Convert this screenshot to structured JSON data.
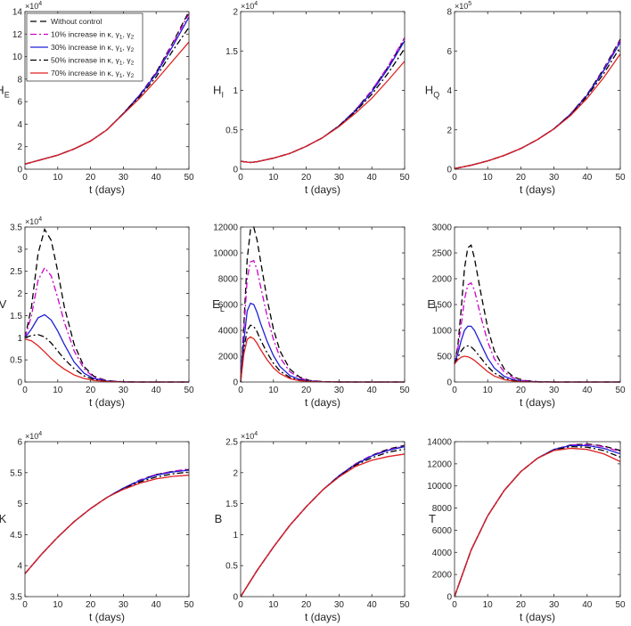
{
  "chart_data": [
    {
      "type": "line",
      "id": "HE",
      "ylabel": "H",
      "ylabel_sub": "E",
      "exponent": "×10",
      "exponent_power": "4",
      "xlabel": "t (days)",
      "xlim": [
        0,
        50
      ],
      "ylim": [
        0,
        14
      ],
      "xticks": [
        0,
        10,
        20,
        30,
        40,
        50
      ],
      "yticks": [
        0,
        2,
        4,
        6,
        8,
        10,
        12,
        14
      ],
      "x": [
        0,
        5,
        10,
        15,
        20,
        25,
        30,
        35,
        40,
        45,
        50
      ],
      "series": [
        {
          "values": [
            0.45,
            0.85,
            1.25,
            1.8,
            2.5,
            3.5,
            4.95,
            6.6,
            8.6,
            11.2,
            14.0
          ]
        },
        {
          "values": [
            0.45,
            0.85,
            1.25,
            1.8,
            2.5,
            3.5,
            4.95,
            6.6,
            8.55,
            11.1,
            13.8
          ]
        },
        {
          "values": [
            0.45,
            0.85,
            1.25,
            1.8,
            2.5,
            3.5,
            4.95,
            6.55,
            8.45,
            10.9,
            13.5
          ]
        },
        {
          "values": [
            0.45,
            0.85,
            1.25,
            1.8,
            2.5,
            3.5,
            4.95,
            6.45,
            8.2,
            10.5,
            12.6
          ]
        },
        {
          "values": [
            0.45,
            0.85,
            1.25,
            1.8,
            2.5,
            3.5,
            4.9,
            6.3,
            7.9,
            9.6,
            11.3
          ]
        }
      ],
      "legend": {
        "placement": "top-left",
        "entries": [
          {
            "text": "Without control"
          },
          {
            "text": "10% increase in κ, γ",
            "subs": [
              "1",
              "2"
            ]
          },
          {
            "text": "30% increase in κ, γ",
            "subs": [
              "1",
              "2"
            ]
          },
          {
            "text": "50% increase in κ, γ",
            "subs": [
              "1",
              "2"
            ]
          },
          {
            "text": "70% increase in κ, γ",
            "subs": [
              "1",
              "2"
            ]
          }
        ]
      }
    },
    {
      "type": "line",
      "id": "HI",
      "ylabel": "H",
      "ylabel_sub": "I",
      "exponent": "×10",
      "exponent_power": "4",
      "xlabel": "t (days)",
      "xlim": [
        0,
        50
      ],
      "ylim": [
        0,
        2
      ],
      "xticks": [
        0,
        10,
        20,
        30,
        40,
        50
      ],
      "yticks": [
        0,
        0.5,
        1,
        1.5,
        2
      ],
      "x": [
        0,
        3,
        5,
        10,
        15,
        20,
        25,
        30,
        35,
        40,
        45,
        50
      ],
      "series": [
        {
          "values": [
            0.1,
            0.085,
            0.095,
            0.14,
            0.2,
            0.29,
            0.4,
            0.55,
            0.75,
            1.0,
            1.3,
            1.65
          ]
        },
        {
          "values": [
            0.1,
            0.085,
            0.095,
            0.14,
            0.2,
            0.29,
            0.4,
            0.55,
            0.75,
            1.0,
            1.31,
            1.67
          ]
        },
        {
          "values": [
            0.1,
            0.085,
            0.095,
            0.14,
            0.2,
            0.29,
            0.4,
            0.55,
            0.74,
            0.98,
            1.28,
            1.63
          ]
        },
        {
          "values": [
            0.1,
            0.085,
            0.095,
            0.14,
            0.2,
            0.29,
            0.4,
            0.55,
            0.73,
            0.95,
            1.22,
            1.53
          ]
        },
        {
          "values": [
            0.1,
            0.085,
            0.095,
            0.14,
            0.2,
            0.29,
            0.4,
            0.54,
            0.71,
            0.9,
            1.13,
            1.37
          ]
        }
      ]
    },
    {
      "type": "line",
      "id": "HQ",
      "ylabel": "H",
      "ylabel_sub": "Q",
      "exponent": "×10",
      "exponent_power": "5",
      "xlabel": "t (days)",
      "xlim": [
        0,
        50
      ],
      "ylim": [
        0,
        8
      ],
      "xticks": [
        0,
        10,
        20,
        30,
        40,
        50
      ],
      "yticks": [
        0,
        2,
        4,
        6,
        8
      ],
      "x": [
        0,
        5,
        10,
        15,
        20,
        25,
        30,
        35,
        40,
        45,
        50
      ],
      "series": [
        {
          "values": [
            0.03,
            0.2,
            0.42,
            0.7,
            1.05,
            1.5,
            2.05,
            2.8,
            3.8,
            5.1,
            6.6
          ]
        },
        {
          "values": [
            0.03,
            0.2,
            0.42,
            0.7,
            1.05,
            1.5,
            2.05,
            2.8,
            3.78,
            5.05,
            6.55
          ]
        },
        {
          "values": [
            0.03,
            0.2,
            0.42,
            0.7,
            1.05,
            1.5,
            2.05,
            2.78,
            3.75,
            5.0,
            6.45
          ]
        },
        {
          "values": [
            0.03,
            0.2,
            0.42,
            0.7,
            1.05,
            1.5,
            2.05,
            2.76,
            3.7,
            4.85,
            6.2
          ]
        },
        {
          "values": [
            0.03,
            0.2,
            0.42,
            0.7,
            1.05,
            1.5,
            2.04,
            2.72,
            3.6,
            4.65,
            5.85
          ]
        }
      ]
    },
    {
      "type": "line",
      "id": "V",
      "ylabel": "V",
      "ylabel_sub": "",
      "exponent": "×10",
      "exponent_power": "4",
      "xlabel": "t (days)",
      "xlim": [
        0,
        50
      ],
      "ylim": [
        0,
        3.5
      ],
      "xticks": [
        0,
        10,
        20,
        30,
        40,
        50
      ],
      "yticks": [
        0,
        0.5,
        1,
        1.5,
        2,
        2.5,
        3,
        3.5
      ],
      "x": [
        0,
        2,
        4,
        6,
        8,
        10,
        12,
        15,
        18,
        21,
        25,
        30,
        35,
        40,
        50
      ],
      "series": [
        {
          "values": [
            1.0,
            1.7,
            2.9,
            3.45,
            3.2,
            2.5,
            1.7,
            0.85,
            0.35,
            0.13,
            0.03,
            0.005,
            0,
            0,
            0
          ]
        },
        {
          "values": [
            1.0,
            1.5,
            2.3,
            2.58,
            2.4,
            1.9,
            1.35,
            0.7,
            0.3,
            0.11,
            0.025,
            0.005,
            0,
            0,
            0
          ]
        },
        {
          "values": [
            1.0,
            1.2,
            1.45,
            1.52,
            1.4,
            1.15,
            0.85,
            0.45,
            0.2,
            0.08,
            0.02,
            0,
            0,
            0,
            0
          ]
        },
        {
          "values": [
            1.0,
            1.05,
            1.07,
            1.02,
            0.88,
            0.7,
            0.52,
            0.3,
            0.14,
            0.06,
            0.015,
            0,
            0,
            0,
            0
          ]
        },
        {
          "values": [
            0.97,
            0.93,
            0.82,
            0.68,
            0.53,
            0.4,
            0.29,
            0.16,
            0.08,
            0.035,
            0.01,
            0,
            0,
            0,
            0
          ]
        }
      ]
    },
    {
      "type": "line",
      "id": "EL",
      "ylabel": "E",
      "ylabel_sub": "L",
      "exponent": "",
      "exponent_power": "",
      "xlabel": "t (days)",
      "xlim": [
        0,
        50
      ],
      "ylim": [
        0,
        12000
      ],
      "xticks": [
        0,
        10,
        20,
        30,
        40,
        50
      ],
      "yticks": [
        0,
        2000,
        4000,
        6000,
        8000,
        10000,
        12000
      ],
      "x": [
        0,
        1,
        2,
        3,
        4,
        5,
        6,
        8,
        10,
        12,
        15,
        18,
        21,
        25,
        30,
        40,
        50
      ],
      "series": [
        {
          "values": [
            0,
            4500,
            9500,
            11800,
            12000,
            11000,
            9500,
            6500,
            4100,
            2400,
            1000,
            380,
            120,
            30,
            5,
            0,
            0
          ]
        },
        {
          "values": [
            0,
            4000,
            8000,
            9300,
            9400,
            8700,
            7500,
            5200,
            3300,
            1900,
            800,
            300,
            100,
            25,
            5,
            0,
            0
          ]
        },
        {
          "values": [
            0,
            3200,
            5500,
            6100,
            6000,
            5400,
            4600,
            3200,
            2050,
            1200,
            500,
            190,
            65,
            15,
            0,
            0,
            0
          ]
        },
        {
          "values": [
            0,
            2600,
            4000,
            4400,
            4300,
            3900,
            3300,
            2300,
            1450,
            850,
            360,
            140,
            45,
            10,
            0,
            0,
            0
          ]
        },
        {
          "values": [
            0,
            2200,
            3300,
            3500,
            3350,
            3000,
            2550,
            1750,
            1100,
            650,
            270,
            100,
            35,
            8,
            0,
            0,
            0
          ]
        }
      ]
    },
    {
      "type": "line",
      "id": "EI",
      "ylabel": "E",
      "ylabel_sub": "I",
      "exponent": "",
      "exponent_power": "",
      "xlabel": "t (days)",
      "xlim": [
        0,
        50
      ],
      "ylim": [
        0,
        3000
      ],
      "xticks": [
        0,
        10,
        20,
        30,
        40,
        50
      ],
      "yticks": [
        0,
        500,
        1000,
        1500,
        2000,
        2500,
        3000
      ],
      "x": [
        0,
        1,
        2,
        3,
        4,
        5,
        6,
        8,
        10,
        12,
        15,
        18,
        21,
        25,
        30,
        40,
        50
      ],
      "series": [
        {
          "values": [
            350,
            700,
            1400,
            2200,
            2600,
            2650,
            2400,
            1700,
            1050,
            600,
            250,
            90,
            30,
            8,
            0,
            0,
            0
          ]
        },
        {
          "values": [
            350,
            650,
            1100,
            1600,
            1880,
            1920,
            1780,
            1250,
            780,
            450,
            190,
            70,
            25,
            6,
            0,
            0,
            0
          ]
        },
        {
          "values": [
            350,
            550,
            800,
            1000,
            1080,
            1080,
            1000,
            730,
            460,
            270,
            110,
            40,
            13,
            3,
            0,
            0,
            0
          ]
        },
        {
          "values": [
            350,
            480,
            600,
            680,
            700,
            680,
            620,
            460,
            300,
            175,
            70,
            25,
            8,
            0,
            0,
            0,
            0
          ]
        },
        {
          "values": [
            350,
            430,
            480,
            500,
            490,
            460,
            420,
            310,
            200,
            115,
            45,
            15,
            5,
            0,
            0,
            0,
            0
          ]
        }
      ]
    },
    {
      "type": "line",
      "id": "K",
      "ylabel": "K",
      "ylabel_sub": "",
      "exponent": "×10",
      "exponent_power": "4",
      "xlabel": "t (days)",
      "xlim": [
        0,
        50
      ],
      "ylim": [
        3.5,
        6
      ],
      "xticks": [
        0,
        10,
        20,
        30,
        40,
        50
      ],
      "yticks": [
        3.5,
        4,
        4.5,
        5,
        5.5,
        6
      ],
      "x": [
        0,
        5,
        10,
        15,
        20,
        25,
        30,
        35,
        40,
        45,
        50
      ],
      "series": [
        {
          "values": [
            3.87,
            4.18,
            4.46,
            4.71,
            4.92,
            5.1,
            5.25,
            5.38,
            5.47,
            5.52,
            5.55
          ]
        },
        {
          "values": [
            3.87,
            4.18,
            4.46,
            4.71,
            4.92,
            5.1,
            5.25,
            5.38,
            5.47,
            5.52,
            5.56
          ]
        },
        {
          "values": [
            3.87,
            4.18,
            4.46,
            4.71,
            4.92,
            5.1,
            5.25,
            5.37,
            5.46,
            5.51,
            5.54
          ]
        },
        {
          "values": [
            3.87,
            4.18,
            4.46,
            4.71,
            4.92,
            5.1,
            5.24,
            5.35,
            5.43,
            5.48,
            5.51
          ]
        },
        {
          "values": [
            3.87,
            4.18,
            4.46,
            4.71,
            4.92,
            5.1,
            5.23,
            5.33,
            5.4,
            5.44,
            5.46
          ]
        }
      ]
    },
    {
      "type": "line",
      "id": "B",
      "ylabel": "B",
      "ylabel_sub": "",
      "exponent": "×10",
      "exponent_power": "4",
      "xlabel": "t (days)",
      "xlim": [
        0,
        50
      ],
      "ylim": [
        0,
        2.5
      ],
      "xticks": [
        0,
        10,
        20,
        30,
        40,
        50
      ],
      "yticks": [
        0,
        0.5,
        1,
        1.5,
        2,
        2.5
      ],
      "x": [
        0,
        5,
        10,
        15,
        20,
        25,
        30,
        35,
        40,
        45,
        50
      ],
      "series": [
        {
          "values": [
            0,
            0.42,
            0.8,
            1.15,
            1.45,
            1.72,
            1.95,
            2.14,
            2.28,
            2.38,
            2.44
          ]
        },
        {
          "values": [
            0,
            0.42,
            0.8,
            1.15,
            1.45,
            1.72,
            1.95,
            2.14,
            2.28,
            2.37,
            2.43
          ]
        },
        {
          "values": [
            0,
            0.42,
            0.8,
            1.15,
            1.45,
            1.72,
            1.95,
            2.13,
            2.27,
            2.36,
            2.42
          ]
        },
        {
          "values": [
            0,
            0.42,
            0.8,
            1.15,
            1.45,
            1.72,
            1.94,
            2.12,
            2.24,
            2.33,
            2.38
          ]
        },
        {
          "values": [
            0,
            0.42,
            0.8,
            1.15,
            1.45,
            1.72,
            1.93,
            2.1,
            2.2,
            2.26,
            2.3
          ]
        }
      ]
    },
    {
      "type": "line",
      "id": "T",
      "ylabel": "T",
      "ylabel_sub": "",
      "exponent": "",
      "exponent_power": "",
      "xlabel": "t (days)",
      "xlim": [
        0,
        50
      ],
      "ylim": [
        0,
        14000
      ],
      "xticks": [
        0,
        10,
        20,
        30,
        40,
        50
      ],
      "yticks": [
        0,
        2000,
        4000,
        6000,
        8000,
        10000,
        12000,
        14000
      ],
      "x": [
        0,
        5,
        10,
        15,
        20,
        25,
        30,
        35,
        40,
        45,
        50
      ],
      "series": [
        {
          "values": [
            0,
            4200,
            7300,
            9600,
            11300,
            12500,
            13300,
            13700,
            13800,
            13600,
            13200
          ]
        },
        {
          "values": [
            0,
            4200,
            7300,
            9600,
            11300,
            12500,
            13300,
            13700,
            13750,
            13550,
            13100
          ]
        },
        {
          "values": [
            0,
            4200,
            7300,
            9600,
            11300,
            12500,
            13300,
            13650,
            13650,
            13400,
            12900
          ]
        },
        {
          "values": [
            0,
            4200,
            7300,
            9600,
            11300,
            12500,
            13250,
            13550,
            13500,
            13200,
            12600
          ]
        },
        {
          "values": [
            0,
            4200,
            7300,
            9600,
            11300,
            12500,
            13200,
            13400,
            13300,
            12900,
            12200
          ]
        }
      ]
    }
  ],
  "styles": [
    {
      "color": "#000000",
      "dash": "7,4"
    },
    {
      "color": "#cc00cc",
      "dash": "7,3,2,3"
    },
    {
      "color": "#1f1fd6",
      "dash": ""
    },
    {
      "color": "#000000",
      "dash": "7,3,2,3"
    },
    {
      "color": "#e02020",
      "dash": ""
    }
  ]
}
